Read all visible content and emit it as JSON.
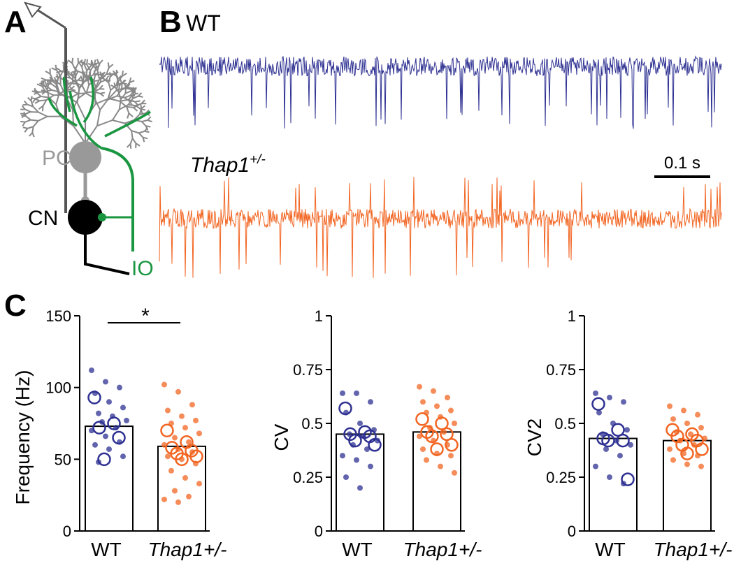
{
  "panels": {
    "a": "A",
    "b": "B",
    "c": "C"
  },
  "diagram": {
    "pc": "PC",
    "cn": "CN",
    "io": "IO"
  },
  "traces": {
    "wt": "WT",
    "mutant": "Thap1",
    "mutant_sup": "+/-",
    "scale_bar": "0.1 s"
  },
  "chart_data": [
    {
      "type": "bar",
      "ylabel": "Frequency (Hz)",
      "categories": [
        "WT",
        "Thap1+/-"
      ],
      "values": [
        73,
        59
      ],
      "colors": [
        "#2e3192",
        "#f26522"
      ],
      "dots": [
        [
          112,
          104,
          100,
          96,
          90,
          86,
          82,
          80,
          77,
          76,
          72,
          70,
          66,
          62,
          60,
          57,
          52,
          48
        ],
        [
          102,
          97,
          88,
          84,
          80,
          77,
          75,
          72,
          68,
          65,
          62,
          60,
          57,
          55,
          52,
          50,
          47,
          42,
          37,
          33,
          28,
          24,
          22,
          20
        ]
      ],
      "circles": [
        [
          93,
          75,
          72,
          65,
          50
        ],
        [
          70,
          62,
          58,
          56,
          54,
          52,
          50
        ]
      ],
      "annotation": "*",
      "ylim": [
        0,
        150
      ],
      "yticks": [
        0,
        50,
        100,
        150
      ]
    },
    {
      "type": "bar",
      "ylabel": "CV",
      "categories": [
        "WT",
        "Thap1+/-"
      ],
      "values": [
        0.45,
        0.46
      ],
      "colors": [
        "#2e3192",
        "#f26522"
      ],
      "dots": [
        [
          0.64,
          0.64,
          0.6,
          0.55,
          0.5,
          0.47,
          0.45,
          0.44,
          0.42,
          0.4,
          0.38,
          0.35,
          0.33,
          0.3,
          0.25,
          0.2
        ],
        [
          0.67,
          0.65,
          0.62,
          0.6,
          0.58,
          0.56,
          0.55,
          0.53,
          0.5,
          0.48,
          0.46,
          0.44,
          0.42,
          0.4,
          0.38,
          0.36,
          0.35,
          0.33,
          0.3,
          0.27
        ]
      ],
      "circles": [
        [
          0.57,
          0.46,
          0.45,
          0.44,
          0.42,
          0.4
        ],
        [
          0.52,
          0.5,
          0.46,
          0.45,
          0.44,
          0.4,
          0.38
        ]
      ],
      "ylim": [
        0,
        1
      ],
      "yticks": [
        0,
        0.25,
        0.5,
        0.75,
        1
      ]
    },
    {
      "type": "bar",
      "ylabel": "CV2",
      "categories": [
        "WT",
        "Thap1+/-"
      ],
      "values": [
        0.43,
        0.42
      ],
      "colors": [
        "#2e3192",
        "#f26522"
      ],
      "dots": [
        [
          0.64,
          0.62,
          0.6,
          0.55,
          0.5,
          0.47,
          0.45,
          0.42,
          0.4,
          0.38,
          0.35,
          0.3,
          0.25,
          0.22
        ],
        [
          0.58,
          0.56,
          0.54,
          0.52,
          0.5,
          0.48,
          0.46,
          0.45,
          0.43,
          0.42,
          0.4,
          0.38,
          0.36,
          0.35,
          0.33,
          0.31,
          0.3
        ]
      ],
      "circles": [
        [
          0.59,
          0.47,
          0.43,
          0.42,
          0.42,
          0.24
        ],
        [
          0.47,
          0.45,
          0.44,
          0.42,
          0.4,
          0.38,
          0.36
        ]
      ],
      "ylim": [
        0,
        1
      ],
      "yticks": [
        0,
        0.25,
        0.5,
        0.75,
        1
      ]
    }
  ]
}
